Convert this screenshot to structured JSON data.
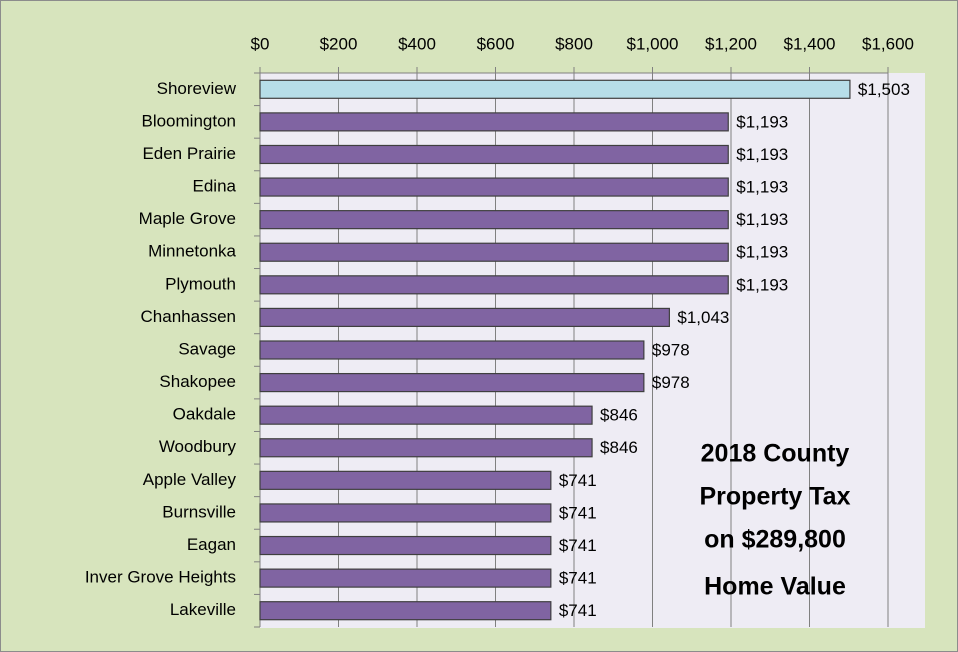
{
  "chart_data": {
    "type": "hbar",
    "categories": [
      "Shoreview",
      "Bloomington",
      "Eden Prairie",
      "Edina",
      "Maple Grove",
      "Minnetonka",
      "Plymouth",
      "Chanhassen",
      "Savage",
      "Shakopee",
      "Oakdale",
      "Woodbury",
      "Apple Valley",
      "Burnsville",
      "Eagan",
      "Inver Grove Heights",
      "Lakeville"
    ],
    "values": [
      1503,
      1193,
      1193,
      1193,
      1193,
      1193,
      1193,
      1043,
      978,
      978,
      846,
      846,
      741,
      741,
      741,
      741,
      741
    ],
    "value_labels": [
      "$1,503",
      "$1,193",
      "$1,193",
      "$1,193",
      "$1,193",
      "$1,193",
      "$1,193",
      "$1,043",
      "$978",
      "$978",
      "$846",
      "$846",
      "$741",
      "$741",
      "$741",
      "$741",
      "$741"
    ],
    "colors": [
      "#b7dee8",
      "#8064a2",
      "#8064a2",
      "#8064a2",
      "#8064a2",
      "#8064a2",
      "#8064a2",
      "#8064a2",
      "#8064a2",
      "#8064a2",
      "#8064a2",
      "#8064a2",
      "#8064a2",
      "#8064a2",
      "#8064a2",
      "#8064a2",
      "#8064a2"
    ],
    "xlim": [
      0,
      1600
    ],
    "xticks": [
      {
        "value": 0,
        "label": "$0"
      },
      {
        "value": 200,
        "label": "$200"
      },
      {
        "value": 400,
        "label": "$400"
      },
      {
        "value": 600,
        "label": "$600"
      },
      {
        "value": 800,
        "label": "$800"
      },
      {
        "value": 1000,
        "label": "$1,000"
      },
      {
        "value": 1200,
        "label": "$1,200"
      },
      {
        "value": 1400,
        "label": "$1,400"
      },
      {
        "value": 1600,
        "label": "$1,600"
      }
    ],
    "grid": true,
    "annotation": [
      "2018 County",
      "Property Tax",
      "on $289,800",
      "Home Value"
    ]
  }
}
